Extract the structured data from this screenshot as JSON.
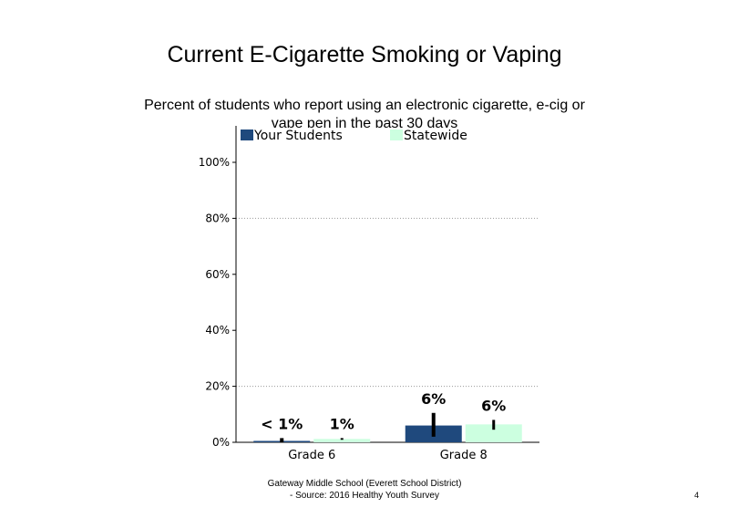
{
  "slide": {
    "page_number": "4"
  },
  "footer": {
    "line1": "Gateway Middle School (Everett School District)",
    "line2": "- Source: 2016 Healthy Youth Survey"
  },
  "colors": {
    "your_students": "#1f497d",
    "statewide": "#ccffe0",
    "error_bar": "#000000",
    "gridline": "#999999"
  },
  "chart_data": {
    "type": "bar",
    "title": "Current E-Cigarette Smoking or Vaping",
    "subtitle": "Percent of students who report using an electronic cigarette, e-cig or vape pen in the past 30 days",
    "categories": [
      "Grade 6",
      "Grade 8"
    ],
    "series": [
      {
        "name": "Your Students",
        "values": [
          0.5,
          6
        ],
        "labels": [
          "< 1%",
          "6%"
        ],
        "error_low": [
          0,
          2
        ],
        "error_high": [
          1.5,
          10.5
        ]
      },
      {
        "name": "Statewide",
        "values": [
          1.2,
          6.4
        ],
        "labels": [
          "1%",
          "6%"
        ],
        "error_low": [
          0.9,
          4.5
        ],
        "error_high": [
          1.5,
          8
        ]
      }
    ],
    "ylim": [
      0,
      100
    ],
    "yticks": [
      "0%",
      "20%",
      "40%",
      "60%",
      "80%",
      "100%"
    ],
    "xlabel": "",
    "ylabel": "",
    "grid": true,
    "legend": "top"
  }
}
